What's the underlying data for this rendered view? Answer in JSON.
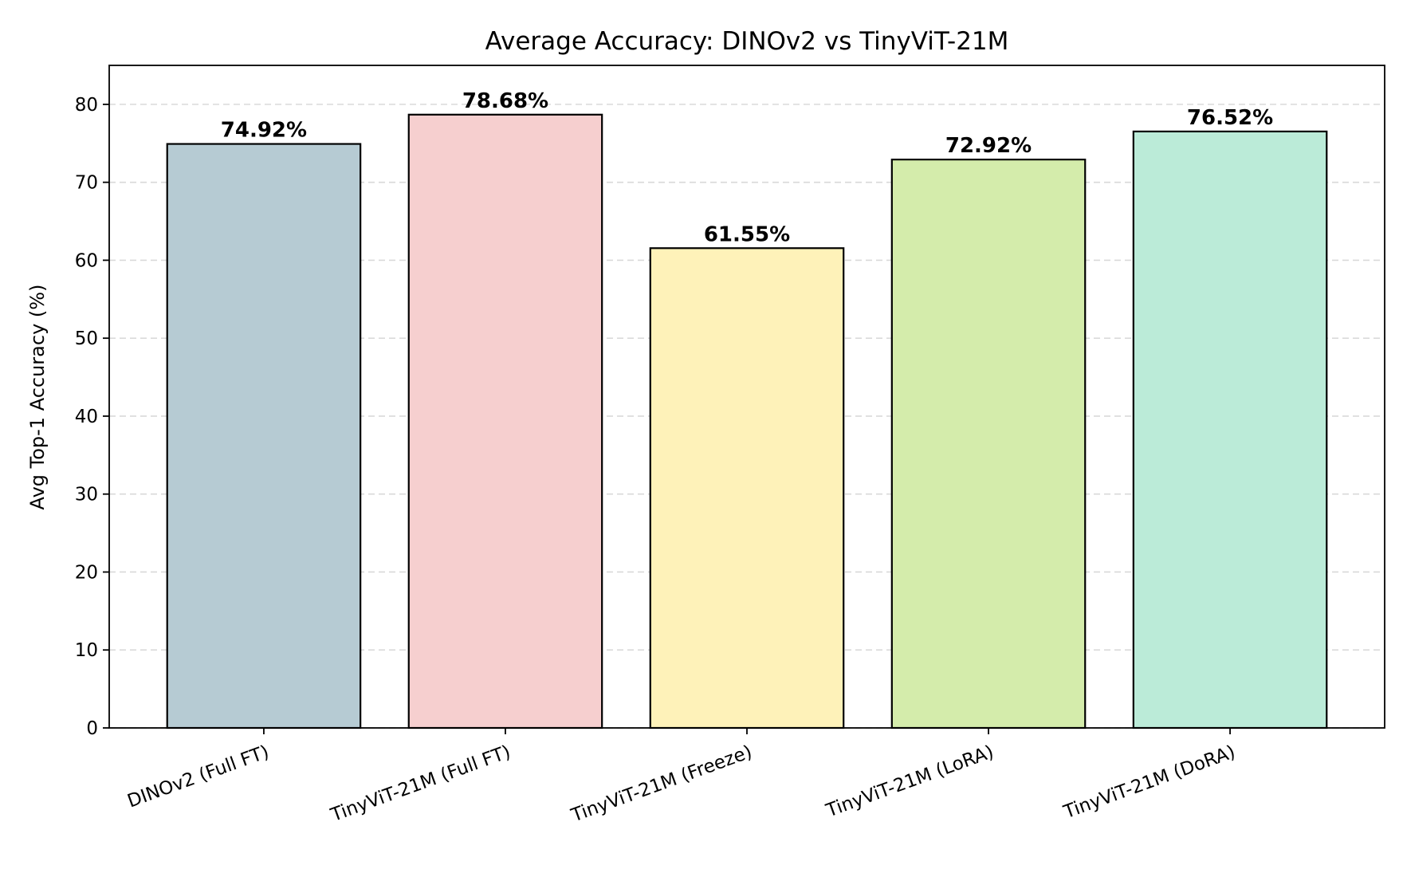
{
  "chart_data": {
    "type": "bar",
    "title": "Average Accuracy: DINOv2 vs TinyViT-21M",
    "xlabel": "",
    "ylabel": "Avg Top-1 Accuracy (%)",
    "ylim": [
      0,
      85
    ],
    "yticks": [
      0,
      10,
      20,
      30,
      40,
      50,
      60,
      70,
      80
    ],
    "grid": "y-dashed",
    "categories": [
      "DINOv2 (Full FT)",
      "TinyViT-21M (Full FT)",
      "TinyViT-21M (Freeze)",
      "TinyViT-21M (LoRA)",
      "TinyViT-21M (DoRA)"
    ],
    "values": [
      74.92,
      78.68,
      61.55,
      72.92,
      76.52
    ],
    "data_labels": [
      "74.92%",
      "78.68%",
      "61.55%",
      "72.92%",
      "76.52%"
    ],
    "colors": [
      "#b6cbd3",
      "#f6cfcf",
      "#fef2b9",
      "#d4ecab",
      "#bbebd8"
    ]
  }
}
